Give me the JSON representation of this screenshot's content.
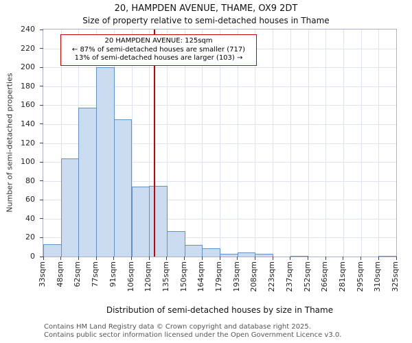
{
  "annotation": {
    "line1": "20 HAMPDEN AVENUE: 125sqm",
    "line2": "← 87% of semi-detached houses are smaller (717)",
    "line3": "13% of semi-detached houses are larger (103) →"
  },
  "footer": {
    "line1": "Contains HM Land Registry data © Crown copyright and database right 2025.",
    "line2": "Contains public sector information licensed under the Open Government Licence v3.0."
  },
  "chart_data": {
    "type": "bar",
    "title": "20, HAMPDEN AVENUE, THAME, OX9 2DT",
    "subtitle": "Size of property relative to semi-detached houses in Thame",
    "xlabel": "Distribution of semi-detached houses by size in Thame",
    "ylabel": "Number of semi-detached properties",
    "bin_edges": [
      33,
      48,
      62,
      77,
      91,
      106,
      120,
      135,
      150,
      164,
      179,
      193,
      208,
      223,
      237,
      252,
      266,
      281,
      295,
      310,
      325
    ],
    "tick_labels": [
      "33sqm",
      "48sqm",
      "62sqm",
      "77sqm",
      "91sqm",
      "106sqm",
      "120sqm",
      "135sqm",
      "150sqm",
      "164sqm",
      "179sqm",
      "193sqm",
      "208sqm",
      "223sqm",
      "237sqm",
      "252sqm",
      "266sqm",
      "281sqm",
      "295sqm",
      "310sqm",
      "325sqm"
    ],
    "values": [
      13,
      104,
      157,
      200,
      145,
      74,
      75,
      27,
      12,
      9,
      3,
      4,
      3,
      0,
      1,
      0,
      0,
      0,
      0,
      1
    ],
    "ylim": [
      0,
      240
    ],
    "ytick_step": 20,
    "grid": true,
    "legend": "none",
    "marker": {
      "value_sqm": 125,
      "smaller_pct": 87,
      "smaller_count": 717,
      "larger_pct": 13,
      "larger_count": 103,
      "color": "#cc0000"
    },
    "colors": {
      "bar_fill": "#ccdcf0",
      "bar_border": "#6290c8",
      "grid": "#dde4f0",
      "marker_line": "#cc0000"
    }
  }
}
